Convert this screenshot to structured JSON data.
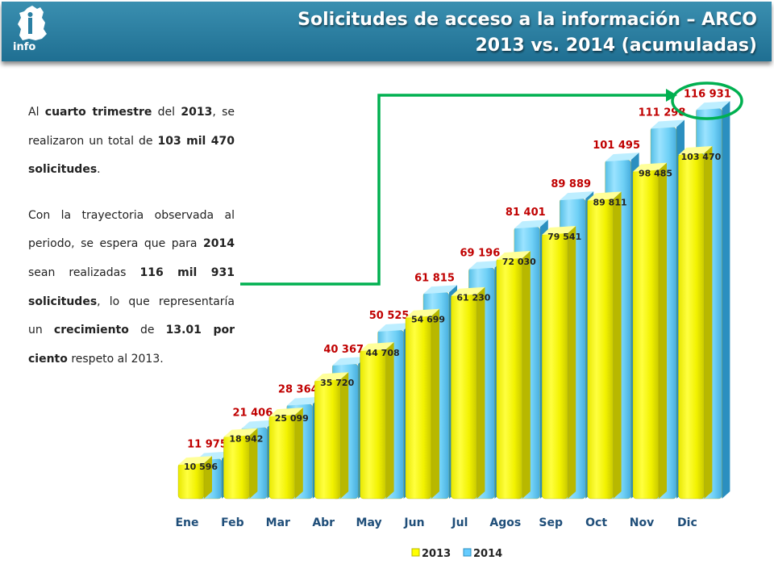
{
  "header": {
    "logo_text": "info",
    "title_line1": "Solicitudes de acceso a la información – ARCO",
    "title_line2": "2013 vs. 2014 (acumuladas)"
  },
  "text": {
    "p1": [
      {
        "t": "Al ",
        "b": false
      },
      {
        "t": "cuarto trimestre",
        "b": true
      },
      {
        "t": " del ",
        "b": false
      },
      {
        "t": "2013",
        "b": true
      },
      {
        "t": ", se realizaron un total de  ",
        "b": false
      },
      {
        "t": "103 mil 470 solicitudes",
        "b": true
      },
      {
        "t": ".",
        "b": false
      }
    ],
    "p2": [
      {
        "t": "Con la trayectoria observada al periodo, se espera que para ",
        "b": false
      },
      {
        "t": "2014",
        "b": true
      },
      {
        "t": " sean realizadas ",
        "b": false
      },
      {
        "t": "116 mil 931 solicitudes",
        "b": true
      },
      {
        "t": ", lo que representaría un ",
        "b": false
      },
      {
        "t": "crecimiento",
        "b": true
      },
      {
        "t": " de ",
        "b": false
      },
      {
        "t": "13.01 por ciento",
        "b": true
      },
      {
        "t": " respeto al 2013.",
        "b": false
      }
    ]
  },
  "colors": {
    "header": "#2a7fa3",
    "bar_2013": "#ffff00",
    "bar_2014": "#66ccff",
    "label_2014": "#c00000",
    "arrow": "#00b050"
  },
  "chart_data": {
    "type": "bar",
    "categories": [
      "Ene",
      "Feb",
      "Mar",
      "Abr",
      "May",
      "Jun",
      "Jul",
      "Agos",
      "Sep",
      "Oct",
      "Nov",
      "Dic"
    ],
    "series": [
      {
        "name": "2013",
        "values": [
          10596,
          18942,
          25099,
          35720,
          44708,
          54699,
          61230,
          72030,
          79541,
          89811,
          98485,
          103470
        ],
        "labels": [
          "10 596",
          "18 942",
          "25 099",
          "35 720",
          "44 708",
          "54 699",
          "61 230",
          "72 030",
          "79 541",
          "89 811",
          "98 485",
          "103 470"
        ]
      },
      {
        "name": "2014",
        "values": [
          11975,
          21406,
          28364,
          40367,
          50525,
          61815,
          69196,
          81401,
          89889,
          101495,
          111298,
          116931
        ],
        "labels": [
          "11 975",
          "21 406",
          "28 364",
          "40 367",
          "50 525",
          "61 815",
          "69 196",
          "81 401",
          "89 889",
          "101 495",
          "111 298",
          "116 931"
        ]
      }
    ],
    "legend": [
      "2013",
      "2014"
    ],
    "legend_position": "bottom"
  }
}
